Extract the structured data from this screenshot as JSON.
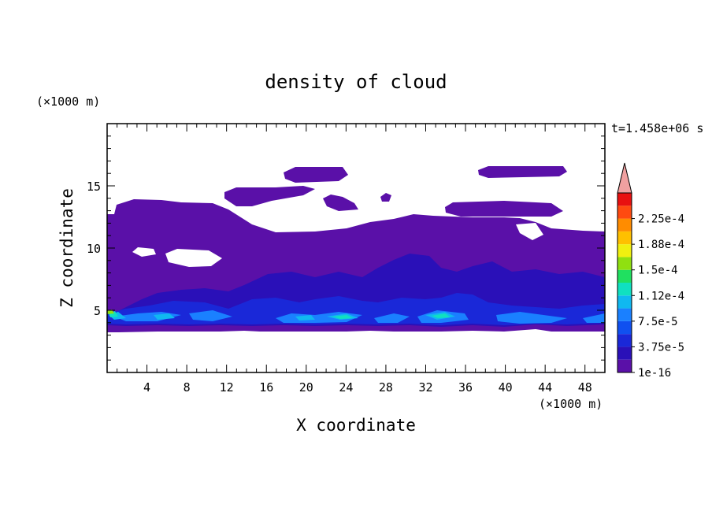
{
  "chart_data": {
    "type": "heatmap",
    "title": "density of cloud",
    "xlabel": "X coordinate",
    "ylabel": "Z coordinate",
    "x_unit": "(×1000 m)",
    "y_unit": "(×1000 m)",
    "time_label": "t=1.458e+06 s",
    "xlim": [
      0,
      50
    ],
    "ylim": [
      0,
      20
    ],
    "xticks": [
      4,
      8,
      12,
      16,
      20,
      24,
      28,
      32,
      36,
      40,
      44,
      48
    ],
    "yticks": [
      5,
      10,
      15
    ],
    "colorbar": {
      "labels": [
        "1e-16",
        "3.75e-5",
        "7.5e-5",
        "1.12e-4",
        "1.5e-4",
        "1.88e-4",
        "2.25e-4"
      ],
      "levels": [
        1e-16,
        1.875e-05,
        3.75e-05,
        5.625e-05,
        7.5e-05,
        9.375e-05,
        0.000112,
        0.000131,
        0.00015,
        0.000169,
        0.000188,
        0.000206,
        0.000225,
        0.000244
      ],
      "colors": [
        "#5a10a8",
        "#2a10b8",
        "#1a28d8",
        "#1050f0",
        "#1a80ff",
        "#10b8f0",
        "#10e0c0",
        "#20e060",
        "#90e010",
        "#f0f010",
        "#ffc000",
        "#ff8c00",
        "#ff4a10",
        "#e81010"
      ],
      "over_color": "#f0a0a0"
    },
    "regions": [
      {
        "level": 0,
        "z_bottom": 3.2,
        "z_top": 12.8,
        "x": [
          0,
          50
        ],
        "desc": "main cloud layer, value ~1e-16 to 1.9e-5"
      },
      {
        "level": 0,
        "z_bottom": 12.5,
        "z_top": 13.8,
        "x": [
          2.5,
          14.5
        ]
      },
      {
        "level": 0,
        "z_bottom": 14.2,
        "z_top": 15.3,
        "x": [
          12,
          22
        ]
      },
      {
        "level": 0,
        "z_bottom": 15.8,
        "z_top": 16.3,
        "x": [
          18,
          24
        ]
      },
      {
        "level": 0,
        "z_bottom": 15.8,
        "z_top": 16.5,
        "x": [
          37.5,
          46
        ]
      },
      {
        "level": 0,
        "z_bottom": 12.5,
        "z_top": 13.3,
        "x": [
          34.5,
          45
        ]
      },
      {
        "level": 1,
        "z_bottom": 3.6,
        "z_top": 8.5,
        "x": [
          0,
          50
        ],
        "desc": "layer ~3.75e-5"
      },
      {
        "level": 4,
        "z_bottom": 3.8,
        "z_top": 5.2,
        "x": [
          0,
          50
        ],
        "desc": "streaks ~7.5e-5"
      },
      {
        "level": 6,
        "z_bottom": 4.0,
        "z_top": 4.6,
        "x": [
          19,
          24
        ],
        "desc": "peaks ~1.12e-4"
      },
      {
        "level": 8,
        "z_bottom": 4.7,
        "z_top": 5.0,
        "x": [
          0,
          0.6
        ],
        "desc": "max ~1.5e-4"
      }
    ]
  }
}
